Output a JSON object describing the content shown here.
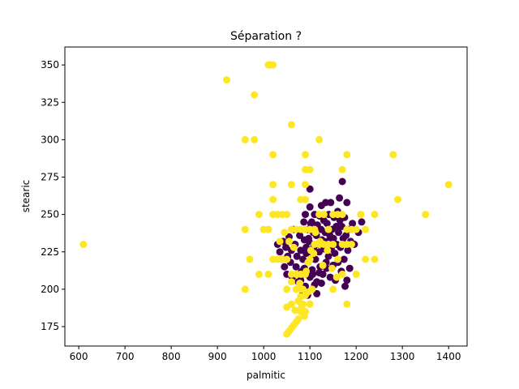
{
  "chart_data": {
    "type": "scatter",
    "title": "Séparation ?",
    "xlabel": "palmitic",
    "ylabel": "stearic",
    "xlim": [
      570,
      1440
    ],
    "ylim": [
      162,
      362
    ],
    "xticks": [
      600,
      700,
      800,
      900,
      1000,
      1100,
      1200,
      1300,
      1400
    ],
    "yticks": [
      175,
      200,
      225,
      250,
      275,
      300,
      325,
      350
    ],
    "grid": false,
    "colors": {
      "class_0": "#440154",
      "class_1": "#fde725"
    },
    "series": [
      {
        "name": "class_0",
        "color": "#440154",
        "points": [
          [
            1030,
            230
          ],
          [
            1035,
            225
          ],
          [
            1040,
            220
          ],
          [
            1042,
            232
          ],
          [
            1045,
            215
          ],
          [
            1048,
            228
          ],
          [
            1050,
            210
          ],
          [
            1052,
            222
          ],
          [
            1055,
            235
          ],
          [
            1058,
            218
          ],
          [
            1060,
            226
          ],
          [
            1062,
            208
          ],
          [
            1065,
            240
          ],
          [
            1068,
            230
          ],
          [
            1070,
            215
          ],
          [
            1072,
            222
          ],
          [
            1075,
            205
          ],
          [
            1078,
            236
          ],
          [
            1080,
            226
          ],
          [
            1082,
            212
          ],
          [
            1085,
            220
          ],
          [
            1087,
            245
          ],
          [
            1088,
            233
          ],
          [
            1090,
            250
          ],
          [
            1092,
            228
          ],
          [
            1094,
            210
          ],
          [
            1095,
            240
          ],
          [
            1096,
            218
          ],
          [
            1098,
            232
          ],
          [
            1100,
            267
          ],
          [
            1100,
            255
          ],
          [
            1102,
            225
          ],
          [
            1104,
            245
          ],
          [
            1105,
            213
          ],
          [
            1107,
            238
          ],
          [
            1108,
            228
          ],
          [
            1110,
            250
          ],
          [
            1112,
            220
          ],
          [
            1114,
            236
          ],
          [
            1115,
            205
          ],
          [
            1116,
            243
          ],
          [
            1118,
            230
          ],
          [
            1120,
            225
          ],
          [
            1121,
            249
          ],
          [
            1122,
            215
          ],
          [
            1124,
            240
          ],
          [
            1125,
            256
          ],
          [
            1126,
            233
          ],
          [
            1128,
            210
          ],
          [
            1130,
            246
          ],
          [
            1131,
            227
          ],
          [
            1133,
            238
          ],
          [
            1134,
            258
          ],
          [
            1135,
            218
          ],
          [
            1137,
            244
          ],
          [
            1138,
            232
          ],
          [
            1140,
            222
          ],
          [
            1141,
            250
          ],
          [
            1143,
            236
          ],
          [
            1144,
            208
          ],
          [
            1145,
            258
          ],
          [
            1146,
            227
          ],
          [
            1148,
            240
          ],
          [
            1150,
            216
          ],
          [
            1151,
            234
          ],
          [
            1152,
            248
          ],
          [
            1154,
            224
          ],
          [
            1155,
            206
          ],
          [
            1157,
            242
          ],
          [
            1158,
            230
          ],
          [
            1160,
            252
          ],
          [
            1161,
            218
          ],
          [
            1162,
            238
          ],
          [
            1164,
            261
          ],
          [
            1165,
            246
          ],
          [
            1166,
            228
          ],
          [
            1168,
            212
          ],
          [
            1169,
            242
          ],
          [
            1170,
            272
          ],
          [
            1172,
            234
          ],
          [
            1174,
            220
          ],
          [
            1175,
            248
          ],
          [
            1176,
            202
          ],
          [
            1178,
            236
          ],
          [
            1180,
            258
          ],
          [
            1180,
            206
          ],
          [
            1182,
            226
          ],
          [
            1184,
            240
          ],
          [
            1186,
            214
          ],
          [
            1188,
            232
          ],
          [
            1192,
            244
          ],
          [
            1196,
            230
          ],
          [
            1205,
            238
          ],
          [
            1212,
            245
          ],
          [
            1080,
            206
          ],
          [
            1085,
            198
          ],
          [
            1090,
            202
          ],
          [
            1095,
            196
          ],
          [
            1100,
            208
          ],
          [
            1110,
            203
          ],
          [
            1115,
            197
          ],
          [
            1120,
            211
          ],
          [
            1125,
            204
          ],
          [
            1088,
            214
          ],
          [
            1092,
            224
          ],
          [
            1097,
            234
          ],
          [
            1102,
            244
          ],
          [
            1106,
            210
          ],
          [
            1111,
            220
          ],
          [
            1136,
            214
          ]
        ]
      },
      {
        "name": "class_1",
        "color": "#fde725",
        "points": [
          [
            610,
            230
          ],
          [
            920,
            340
          ],
          [
            980,
            330
          ],
          [
            960,
            300
          ],
          [
            980,
            300
          ],
          [
            1010,
            350
          ],
          [
            1020,
            350
          ],
          [
            1015,
            350
          ],
          [
            1060,
            310
          ],
          [
            1120,
            300
          ],
          [
            1020,
            290
          ],
          [
            1090,
            290
          ],
          [
            1180,
            290
          ],
          [
            1280,
            290
          ],
          [
            1090,
            280
          ],
          [
            1100,
            280
          ],
          [
            1170,
            280
          ],
          [
            1020,
            270
          ],
          [
            1060,
            270
          ],
          [
            1090,
            270
          ],
          [
            1400,
            270
          ],
          [
            1090,
            260
          ],
          [
            1290,
            260
          ],
          [
            1020,
            260
          ],
          [
            1080,
            260
          ],
          [
            960,
            240
          ],
          [
            990,
            250
          ],
          [
            1010,
            240
          ],
          [
            1020,
            250
          ],
          [
            1030,
            250
          ],
          [
            1040,
            250
          ],
          [
            1050,
            250
          ],
          [
            1060,
            240
          ],
          [
            1070,
            240
          ],
          [
            1080,
            240
          ],
          [
            1090,
            240
          ],
          [
            1100,
            240
          ],
          [
            1110,
            240
          ],
          [
            1120,
            250
          ],
          [
            1130,
            250
          ],
          [
            1140,
            240
          ],
          [
            1150,
            250
          ],
          [
            1160,
            250
          ],
          [
            1170,
            250
          ],
          [
            1180,
            240
          ],
          [
            1190,
            240
          ],
          [
            1200,
            240
          ],
          [
            1210,
            250
          ],
          [
            1220,
            240
          ],
          [
            1240,
            250
          ],
          [
            1350,
            250
          ],
          [
            1000,
            240
          ],
          [
            970,
            220
          ],
          [
            990,
            210
          ],
          [
            1010,
            210
          ],
          [
            1020,
            220
          ],
          [
            1030,
            220
          ],
          [
            1040,
            220
          ],
          [
            1050,
            220
          ],
          [
            1060,
            210
          ],
          [
            1070,
            210
          ],
          [
            1080,
            210
          ],
          [
            1090,
            210
          ],
          [
            1100,
            220
          ],
          [
            1110,
            230
          ],
          [
            1120,
            230
          ],
          [
            1130,
            230
          ],
          [
            1140,
            230
          ],
          [
            1150,
            230
          ],
          [
            1160,
            220
          ],
          [
            1170,
            230
          ],
          [
            1180,
            230
          ],
          [
            1190,
            230
          ],
          [
            1200,
            210
          ],
          [
            1220,
            220
          ],
          [
            1240,
            220
          ],
          [
            960,
            200
          ],
          [
            1050,
            200
          ],
          [
            1060,
            205
          ],
          [
            1070,
            200
          ],
          [
            1080,
            195
          ],
          [
            1085,
            190
          ],
          [
            1090,
            185
          ],
          [
            1080,
            185
          ],
          [
            1075,
            180
          ],
          [
            1070,
            178
          ],
          [
            1065,
            176
          ],
          [
            1060,
            174
          ],
          [
            1055,
            172
          ],
          [
            1050,
            170
          ],
          [
            1085,
            200
          ],
          [
            1095,
            198
          ],
          [
            1105,
            200
          ],
          [
            1180,
            190
          ],
          [
            1050,
            188
          ],
          [
            1060,
            190
          ],
          [
            1100,
            190
          ],
          [
            1090,
            196
          ],
          [
            1080,
            200
          ],
          [
            1075,
            192
          ],
          [
            1082,
            188
          ],
          [
            1088,
            182
          ],
          [
            1068,
            186
          ],
          [
            1078,
            204
          ],
          [
            1092,
            212
          ],
          [
            1102,
            226
          ],
          [
            1112,
            238
          ],
          [
            1122,
            232
          ],
          [
            1096,
            218
          ],
          [
            1108,
            224
          ],
          [
            1128,
            216
          ],
          [
            1138,
            226
          ],
          [
            1148,
            214
          ],
          [
            1158,
            208
          ],
          [
            1035,
            232
          ],
          [
            1045,
            238
          ],
          [
            1055,
            232
          ],
          [
            1065,
            228
          ],
          [
            1150,
            200
          ],
          [
            1170,
            210
          ]
        ]
      }
    ]
  }
}
